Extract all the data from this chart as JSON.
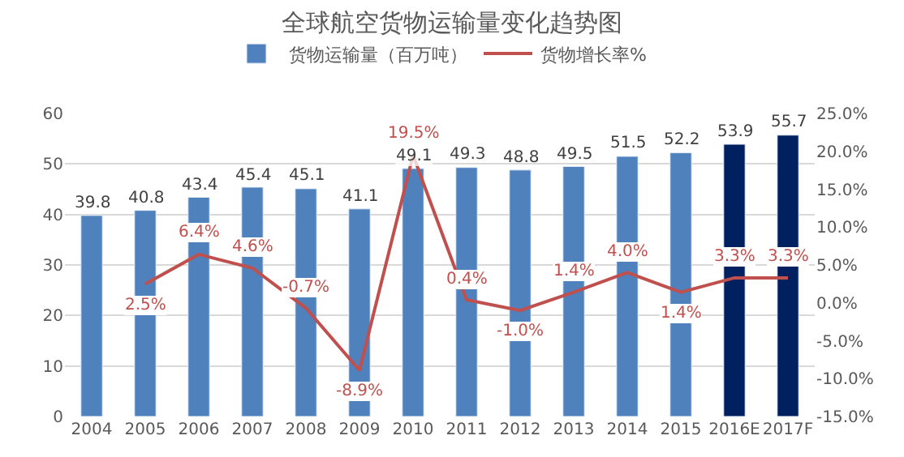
{
  "chart_data": {
    "type": "bar",
    "title": "全球航空货物运输量变化趋势图",
    "categories": [
      "2004",
      "2005",
      "2006",
      "2007",
      "2008",
      "2009",
      "2010",
      "2011",
      "2012",
      "2013",
      "2014",
      "2015",
      "2016E",
      "2017F"
    ],
    "series": [
      {
        "name": "货物运输量（百万吨）",
        "color": "#4f81bd",
        "colors": [
          "#4f81bd",
          "#4f81bd",
          "#4f81bd",
          "#4f81bd",
          "#4f81bd",
          "#4f81bd",
          "#4f81bd",
          "#4f81bd",
          "#4f81bd",
          "#4f81bd",
          "#4f81bd",
          "#4f81bd",
          "#002060",
          "#002060"
        ],
        "values": [
          39.8,
          40.8,
          43.4,
          45.4,
          45.1,
          41.1,
          49.1,
          49.3,
          48.8,
          49.5,
          51.5,
          52.2,
          53.9,
          55.7
        ],
        "value_labels": [
          "39.8",
          "40.8",
          "43.4",
          "45.4",
          "45.1",
          "41.1",
          "49.1",
          "49.3",
          "48.8",
          "49.5",
          "51.5",
          "52.2",
          "53.9",
          "55.7"
        ]
      },
      {
        "name": "货物增长率%",
        "type": "line",
        "axis": "y2",
        "color": "#c0504d",
        "values": [
          null,
          2.5,
          6.4,
          4.6,
          -0.7,
          -8.9,
          19.5,
          0.4,
          -1.0,
          1.4,
          4.0,
          1.4,
          3.3,
          3.3
        ],
        "value_labels": [
          null,
          "2.5%",
          "6.4%",
          "4.6%",
          "-0.7%",
          "-8.9%",
          "19.5%",
          "0.4%",
          "-1.0%",
          "1.4%",
          "4.0%",
          "1.4%",
          "3.3%",
          "3.3%"
        ]
      }
    ],
    "ylim": [
      0,
      60
    ],
    "yticks": [
      0,
      10,
      20,
      30,
      40,
      50,
      60
    ],
    "y2lim": [
      -15,
      25
    ],
    "y2ticks": [
      {
        "value": -15,
        "label": "-15.0%"
      },
      {
        "value": -10,
        "label": "-10.0%"
      },
      {
        "value": -5,
        "label": "-5.0%"
      },
      {
        "value": 0,
        "label": "0.0%"
      },
      {
        "value": 5,
        "label": "5.0%"
      },
      {
        "value": 10,
        "label": "10.0%"
      },
      {
        "value": 15,
        "label": "15.0%"
      },
      {
        "value": 20,
        "label": "20.0%"
      },
      {
        "value": 25,
        "label": "25.0%"
      }
    ],
    "grid": "y",
    "legend": "top",
    "marker": "none",
    "line_style": "solid"
  }
}
